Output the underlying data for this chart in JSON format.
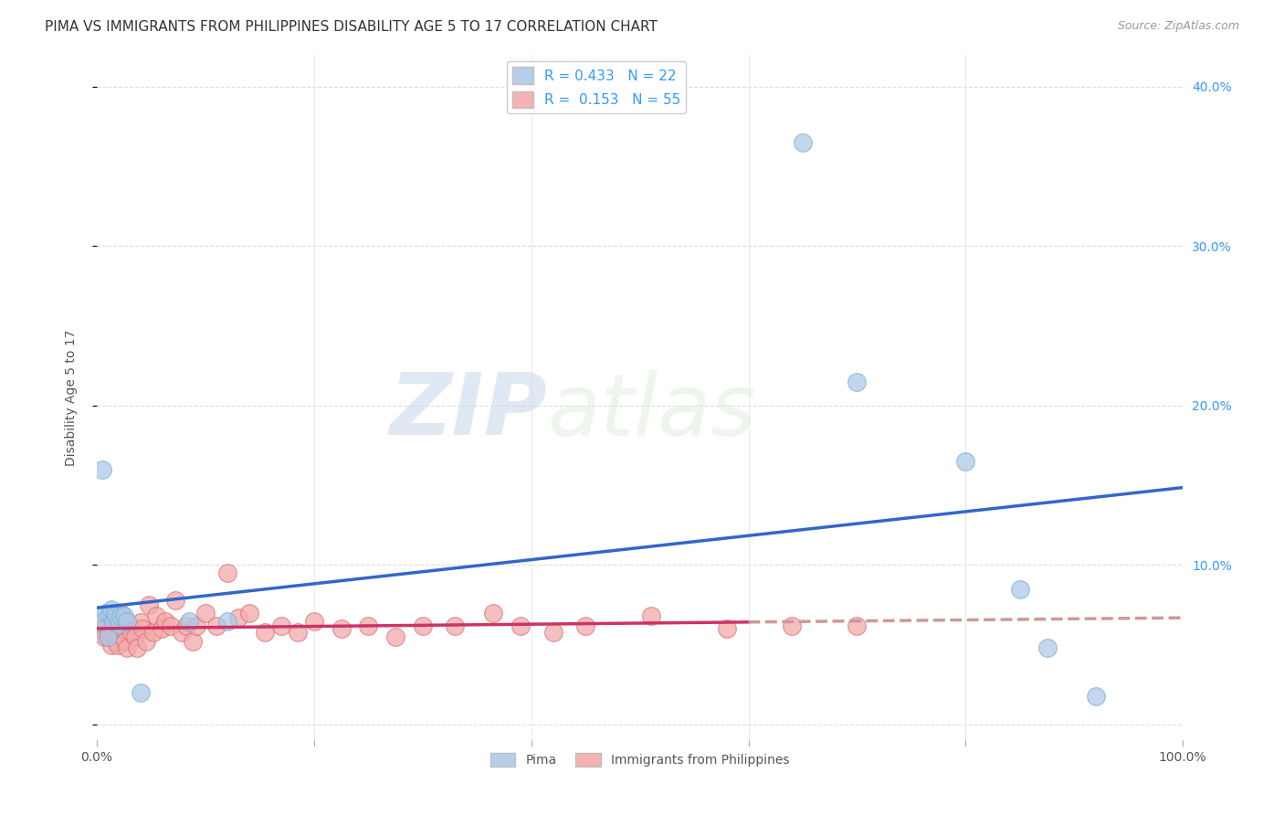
{
  "title": "PIMA VS IMMIGRANTS FROM PHILIPPINES DISABILITY AGE 5 TO 17 CORRELATION CHART",
  "source": "Source: ZipAtlas.com",
  "ylabel": "Disability Age 5 to 17",
  "xlabel": "",
  "xlim": [
    0,
    1.0
  ],
  "ylim": [
    -0.01,
    0.42
  ],
  "ytick_positions": [
    0.0,
    0.1,
    0.2,
    0.3,
    0.4
  ],
  "ytick_labels": [
    "",
    "10.0%",
    "20.0%",
    "30.0%",
    "40.0%"
  ],
  "background_color": "#ffffff",
  "watermark_zip": "ZIP",
  "watermark_atlas": "atlas",
  "pima_color": "#aec9e8",
  "pima_edge_color": "#7bafd4",
  "immigrants_color": "#f4aaaa",
  "immigrants_edge_color": "#d97070",
  "pima_R": 0.433,
  "pima_N": 22,
  "immigrants_R": 0.153,
  "immigrants_N": 55,
  "pima_scatter_x": [
    0.005,
    0.008,
    0.01,
    0.012,
    0.013,
    0.015,
    0.016,
    0.018,
    0.02,
    0.022,
    0.025,
    0.028,
    0.04,
    0.085,
    0.12,
    0.005,
    0.65,
    0.7,
    0.8,
    0.85,
    0.875,
    0.92
  ],
  "pima_scatter_y": [
    0.065,
    0.07,
    0.055,
    0.07,
    0.072,
    0.065,
    0.07,
    0.068,
    0.063,
    0.068,
    0.068,
    0.065,
    0.02,
    0.065,
    0.065,
    0.16,
    0.365,
    0.215,
    0.165,
    0.085,
    0.048,
    0.018
  ],
  "immigrants_scatter_x": [
    0.004,
    0.007,
    0.009,
    0.01,
    0.012,
    0.013,
    0.015,
    0.016,
    0.018,
    0.019,
    0.021,
    0.022,
    0.024,
    0.026,
    0.028,
    0.03,
    0.032,
    0.035,
    0.037,
    0.04,
    0.042,
    0.045,
    0.048,
    0.052,
    0.055,
    0.06,
    0.063,
    0.068,
    0.072,
    0.078,
    0.082,
    0.088,
    0.092,
    0.1,
    0.11,
    0.12,
    0.13,
    0.14,
    0.155,
    0.17,
    0.185,
    0.2,
    0.225,
    0.25,
    0.275,
    0.3,
    0.33,
    0.365,
    0.39,
    0.42,
    0.45,
    0.51,
    0.58,
    0.64,
    0.7
  ],
  "immigrants_scatter_y": [
    0.06,
    0.055,
    0.062,
    0.055,
    0.058,
    0.05,
    0.06,
    0.058,
    0.052,
    0.05,
    0.065,
    0.07,
    0.06,
    0.052,
    0.048,
    0.062,
    0.058,
    0.055,
    0.048,
    0.064,
    0.06,
    0.052,
    0.075,
    0.058,
    0.068,
    0.06,
    0.065,
    0.062,
    0.078,
    0.058,
    0.062,
    0.052,
    0.062,
    0.07,
    0.062,
    0.095,
    0.067,
    0.07,
    0.058,
    0.062,
    0.058,
    0.065,
    0.06,
    0.062,
    0.055,
    0.062,
    0.062,
    0.07,
    0.062,
    0.058,
    0.062,
    0.068,
    0.06,
    0.062,
    0.062
  ],
  "marker_size": 200,
  "line_width": 2.5,
  "grid_color": "#cccccc",
  "grid_style": "--",
  "title_fontsize": 11,
  "axis_label_fontsize": 10,
  "tick_fontsize": 10,
  "annotation_color": "#3399ff",
  "immigrants_line_dash_start": 0.6,
  "pima_line_color": "#3366cc",
  "immigrants_line_color": "#cc3366",
  "immigrants_line_solid_color": "#cc3366",
  "immigrants_line_dash_color": "#cc9999"
}
